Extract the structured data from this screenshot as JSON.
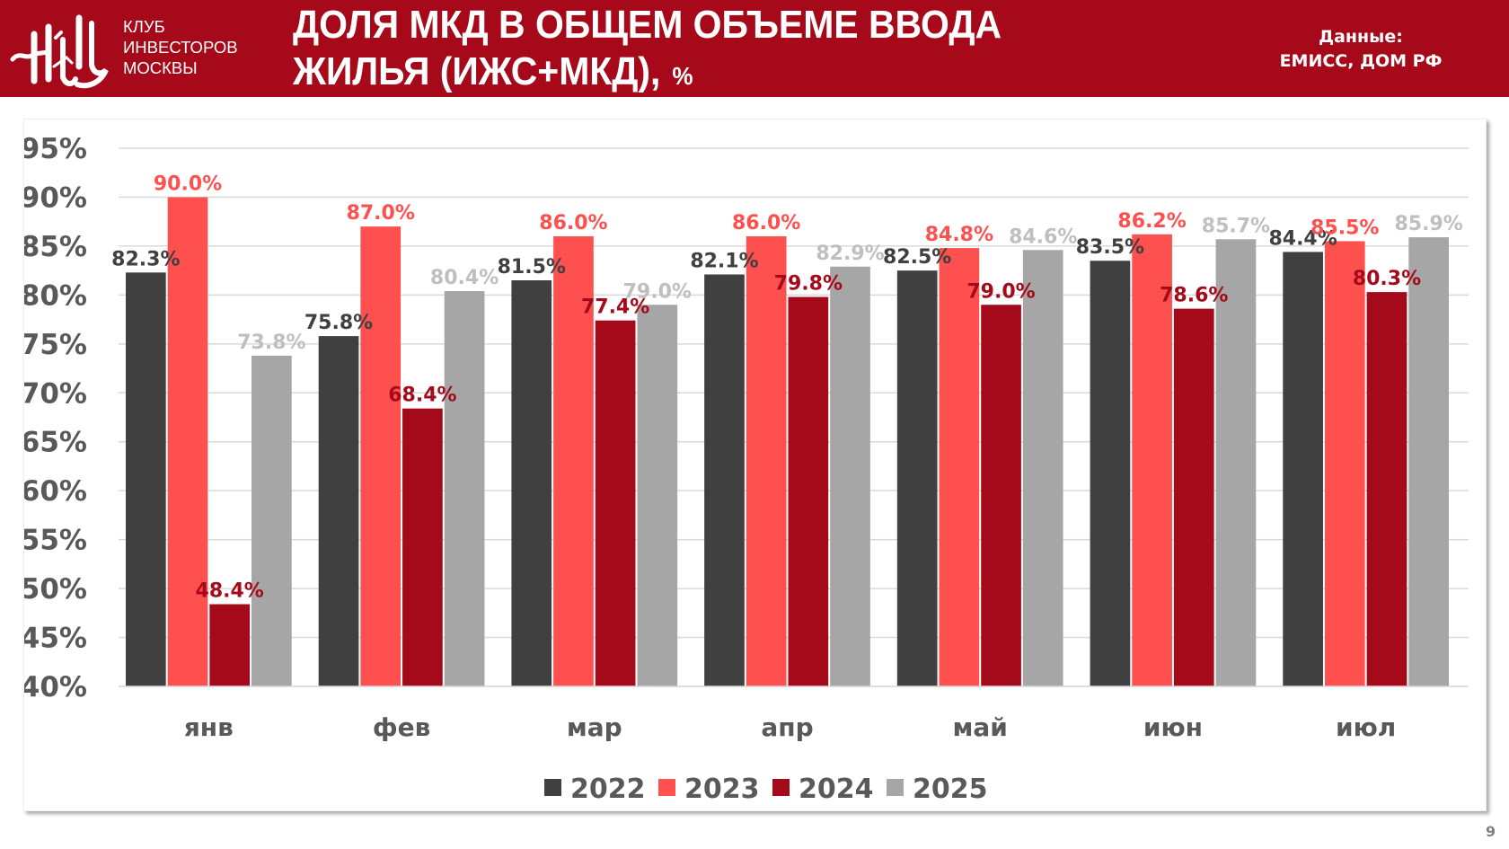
{
  "header": {
    "club_name_lines": [
      "КЛУБ",
      "ИНВЕСТОРОВ",
      "МОСКВЫ"
    ],
    "title_line1": "ДОЛЯ МКД В ОБЩЕМ ОБЪЕМЕ ВВОДА",
    "title_line2": "ЖИЛЬЯ (ИЖС+МКД),",
    "title_unit": "%",
    "source_label": "Данные:",
    "source_value": "ЕМИСС, ДОМ РФ",
    "logo_icon": "club-monogram-logo"
  },
  "page_number": "9",
  "colors": {
    "header_bg": "#a60a1a",
    "series": [
      "#404040",
      "#ff5050",
      "#a50a1a",
      "#a6a6a6"
    ],
    "labels": [
      "#404040",
      "#ff5050",
      "#a50a1a",
      "#bfbfbf"
    ],
    "axis_text": "#595959",
    "gridline": "#d9d9d9"
  },
  "chart_data": {
    "type": "bar",
    "title": "ДОЛЯ МКД В ОБЩЕМ ОБЪЕМЕ ВВОДА ЖИЛЬЯ (ИЖС+МКД), %",
    "xlabel": "",
    "ylabel": "",
    "categories": [
      "янв",
      "фев",
      "мар",
      "апр",
      "май",
      "июн",
      "июл"
    ],
    "series": [
      {
        "name": "2022",
        "values": [
          82.3,
          75.8,
          81.5,
          82.1,
          82.5,
          83.5,
          84.4
        ]
      },
      {
        "name": "2023",
        "values": [
          90.0,
          87.0,
          86.0,
          86.0,
          84.8,
          86.2,
          85.5
        ]
      },
      {
        "name": "2024",
        "values": [
          48.4,
          68.4,
          77.4,
          79.8,
          79.0,
          78.6,
          80.3
        ]
      },
      {
        "name": "2025",
        "values": [
          73.8,
          80.4,
          79.0,
          82.9,
          84.6,
          85.7,
          85.9
        ]
      }
    ],
    "value_format": "0.0%",
    "ylim": [
      40,
      95
    ],
    "yticks": [
      "40%",
      "45%",
      "50%",
      "55%",
      "60%",
      "65%",
      "70%",
      "75%",
      "80%",
      "85%",
      "90%",
      "95%"
    ],
    "ytick_values": [
      40,
      45,
      50,
      55,
      60,
      65,
      70,
      75,
      80,
      85,
      90,
      95
    ],
    "grid": true,
    "legend_position": "bottom"
  }
}
